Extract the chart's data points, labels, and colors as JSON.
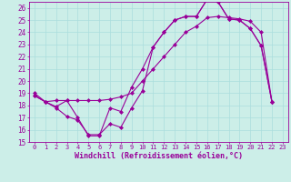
{
  "title": "",
  "xlabel": "Windchill (Refroidissement éolien,°C)",
  "ylabel": "",
  "bg_color": "#cceee8",
  "line_color": "#990099",
  "grid_color": "#aadddd",
  "xlim": [
    -0.5,
    23.5
  ],
  "ylim": [
    15,
    26.5
  ],
  "yticks": [
    15,
    16,
    17,
    18,
    19,
    20,
    21,
    22,
    23,
    24,
    25,
    26
  ],
  "xticks": [
    0,
    1,
    2,
    3,
    4,
    5,
    6,
    7,
    8,
    9,
    10,
    11,
    12,
    13,
    14,
    15,
    16,
    17,
    18,
    19,
    20,
    21,
    22,
    23
  ],
  "line1_x": [
    0,
    1,
    2,
    3,
    4,
    5,
    6,
    7,
    8,
    9,
    10,
    11,
    12,
    13,
    14,
    15,
    16,
    17,
    18,
    19,
    20,
    21,
    22
  ],
  "line1_y": [
    19.0,
    18.3,
    17.9,
    18.4,
    17.0,
    15.5,
    15.5,
    17.8,
    17.5,
    19.5,
    21.0,
    22.8,
    24.0,
    25.0,
    25.3,
    25.3,
    26.7,
    26.5,
    25.1,
    25.0,
    24.3,
    22.9,
    18.3
  ],
  "line2_x": [
    0,
    1,
    2,
    3,
    4,
    5,
    6,
    7,
    8,
    9,
    10,
    11,
    12,
    13,
    14,
    15,
    16,
    17,
    18,
    19,
    20,
    21,
    22
  ],
  "line2_y": [
    18.8,
    18.3,
    18.4,
    18.4,
    18.4,
    18.4,
    18.4,
    18.5,
    18.7,
    19.0,
    20.0,
    21.0,
    22.0,
    23.0,
    24.0,
    24.5,
    25.2,
    25.3,
    25.2,
    25.1,
    24.9,
    24.0,
    18.3
  ],
  "line3_x": [
    0,
    1,
    2,
    3,
    4,
    5,
    6,
    7,
    8,
    9,
    10,
    11,
    12,
    13,
    14,
    15,
    16,
    17,
    18,
    19,
    20,
    21,
    22
  ],
  "line3_y": [
    18.8,
    18.3,
    17.8,
    17.1,
    16.8,
    15.6,
    15.6,
    16.5,
    16.2,
    17.8,
    19.2,
    22.8,
    24.0,
    25.0,
    25.3,
    25.3,
    26.7,
    26.5,
    25.1,
    25.0,
    24.3,
    22.9,
    18.3
  ]
}
